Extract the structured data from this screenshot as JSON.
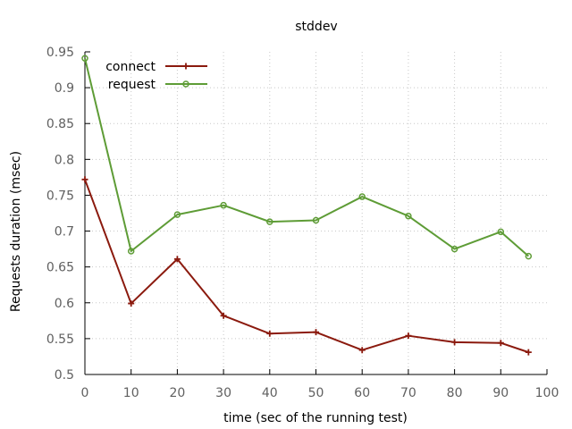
{
  "chart_data": {
    "type": "line",
    "title": "stddev",
    "xlabel": "time (sec of the running test)",
    "ylabel": "Requests duration (msec)",
    "xlim": [
      0,
      100
    ],
    "ylim": [
      0.5,
      0.95
    ],
    "xticks": [
      0,
      10,
      20,
      30,
      40,
      50,
      60,
      70,
      80,
      90,
      100
    ],
    "yticks": [
      0.5,
      0.55,
      0.6,
      0.65,
      0.7,
      0.75,
      0.8,
      0.85,
      0.9,
      0.95
    ],
    "grid": true,
    "legend_position": "top-left",
    "series": [
      {
        "name": "connect",
        "color": "#8b1a0e",
        "marker": "plus",
        "x": [
          0,
          10,
          20,
          30,
          40,
          50,
          60,
          70,
          80,
          90,
          96
        ],
        "y": [
          0.772,
          0.599,
          0.661,
          0.582,
          0.557,
          0.559,
          0.534,
          0.554,
          0.545,
          0.544,
          0.531
        ]
      },
      {
        "name": "request",
        "color": "#5e9c36",
        "marker": "circle",
        "x": [
          0,
          10,
          20,
          30,
          40,
          50,
          60,
          70,
          80,
          90,
          96
        ],
        "y": [
          0.941,
          0.672,
          0.723,
          0.736,
          0.713,
          0.715,
          0.748,
          0.721,
          0.675,
          0.699,
          0.665
        ]
      }
    ]
  }
}
